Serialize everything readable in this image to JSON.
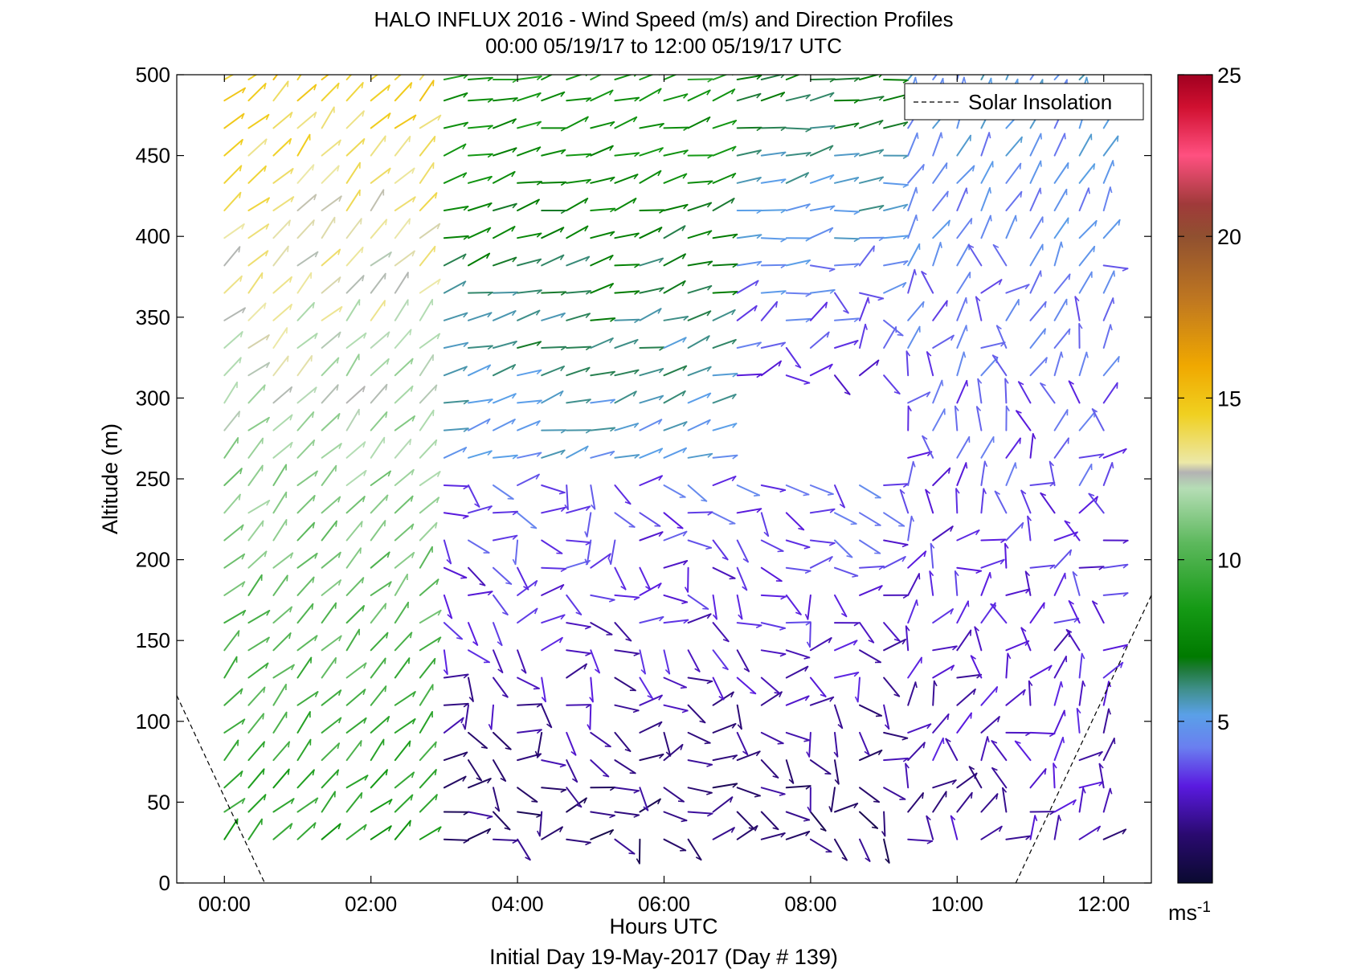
{
  "chart_data": {
    "type": "wind-barb-profile",
    "title": "HALO INFLUX 2016 - Wind Speed (m/s) and Direction Profiles",
    "subtitle": "00:00 05/19/17 to 12:00 05/19/17  UTC",
    "xlabel": "Hours UTC",
    "ylabel": "Altitude (m)",
    "footer": "Initial Day 19-May-2017 (Day # 139)",
    "x_ticks": [
      "00:00",
      "02:00",
      "04:00",
      "06:00",
      "08:00",
      "10:00",
      "12:00"
    ],
    "x_tick_hours": [
      0,
      2,
      4,
      6,
      8,
      10,
      12
    ],
    "xlim_hours": [
      -0.65,
      12.65
    ],
    "y_ticks": [
      0,
      50,
      100,
      150,
      200,
      250,
      300,
      350,
      400,
      450,
      500
    ],
    "ylim": [
      0,
      500
    ],
    "grid": false,
    "legend": {
      "position": "top-right",
      "entries": [
        {
          "label": "Solar Insolation",
          "style": "dashed"
        }
      ]
    },
    "colorbar": {
      "ticks": [
        5,
        10,
        15,
        20,
        25
      ],
      "range": [
        0,
        25
      ],
      "unit_label": "ms",
      "unit_exp": "-1",
      "stops": [
        {
          "v": 0,
          "c": "#0a0a30"
        },
        {
          "v": 1.5,
          "c": "#2a0a70"
        },
        {
          "v": 3,
          "c": "#5a1ae0"
        },
        {
          "v": 4.2,
          "c": "#6a7ff0"
        },
        {
          "v": 5.2,
          "c": "#5aa0e8"
        },
        {
          "v": 6.0,
          "c": "#3f8f8a"
        },
        {
          "v": 6.6,
          "c": "#1f7a3a"
        },
        {
          "v": 7.0,
          "c": "#007a00"
        },
        {
          "v": 8.5,
          "c": "#159a15"
        },
        {
          "v": 10.5,
          "c": "#5cb85c"
        },
        {
          "v": 12.2,
          "c": "#b5ddb5"
        },
        {
          "v": 12.7,
          "c": "#b3b3b3"
        },
        {
          "v": 13.0,
          "c": "#ece8a8"
        },
        {
          "v": 14.5,
          "c": "#f0d020"
        },
        {
          "v": 16,
          "c": "#f0a800"
        },
        {
          "v": 18,
          "c": "#c07820"
        },
        {
          "v": 20,
          "c": "#905030"
        },
        {
          "v": 21,
          "c": "#a03a3a"
        },
        {
          "v": 22.5,
          "c": "#ff5080"
        },
        {
          "v": 24,
          "c": "#d01030"
        },
        {
          "v": 25,
          "c": "#a00020"
        }
      ]
    },
    "solar_insolation": {
      "left": [
        [
          -0.65,
          116
        ],
        [
          0.55,
          0
        ]
      ],
      "right": [
        [
          10.8,
          0
        ],
        [
          12.65,
          178
        ]
      ]
    },
    "altitudes_m": [
      27,
      44,
      59,
      76,
      93,
      110,
      127,
      144,
      161,
      178,
      195,
      212,
      229,
      246,
      263,
      280,
      297,
      314,
      331,
      348,
      365,
      382,
      399,
      416,
      433,
      450,
      467,
      484,
      497
    ],
    "profile_times_h": [
      0,
      0.33,
      0.67,
      1,
      1.33,
      1.67,
      2,
      2.33,
      2.67,
      3,
      3.33,
      3.67,
      4,
      4.33,
      4.67,
      5,
      5.33,
      5.67,
      6,
      6.33,
      6.67,
      7,
      7.33,
      7.67,
      8,
      8.33,
      8.67,
      9,
      9.33,
      9.67,
      10,
      10.33,
      10.67,
      11,
      11.33,
      11.67,
      12
    ],
    "note_units": "speed in m/s, direction in compass degrees (meteorological, wind from)",
    "regimes": [
      {
        "t0": 0,
        "t1": 2.7,
        "z0": 0,
        "z1": 500,
        "dir": 225,
        "spd_low": 8.5,
        "spd_high": 14.5
      },
      {
        "t0": 2.7,
        "t1": 6.7,
        "z0": 260,
        "z1": 500,
        "dir": 255,
        "spd_low": 5,
        "spd_high": 8.5
      },
      {
        "t0": 6.7,
        "t1": 9.3,
        "z0": 300,
        "z1": 500,
        "dir": 260,
        "spd_low": 3,
        "spd_high": 7
      },
      {
        "t0": 2.7,
        "t1": 9.3,
        "z0": 0,
        "z1": 260,
        "dir": 300,
        "spd_low": 1,
        "spd_high": 4
      },
      {
        "t0": 9.3,
        "t1": 12.1,
        "z0": 0,
        "z1": 500,
        "dir": 210,
        "spd_low": 2,
        "spd_high": 5
      }
    ]
  }
}
